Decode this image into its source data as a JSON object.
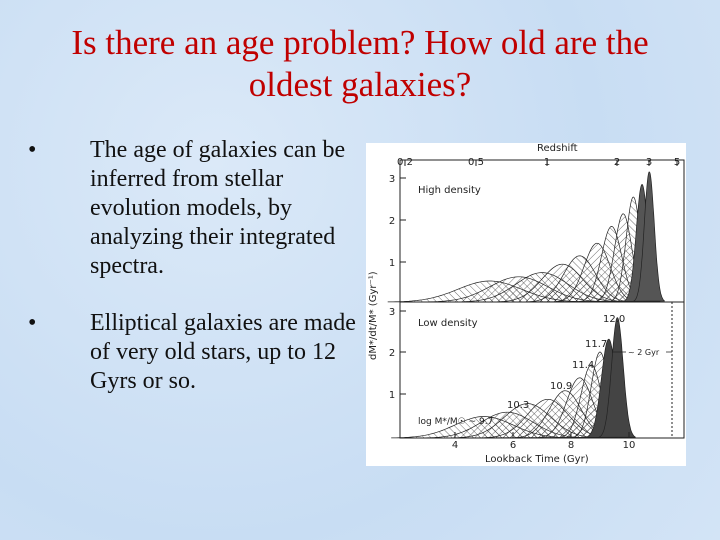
{
  "title": "Is there an age problem? How old are the oldest galaxies?",
  "bullets": [
    "The age of galaxies can be inferred from stellar evolution models, by analyzing their integrated spectra.",
    "Elliptical galaxies are made of very old stars, up to 12 Gyrs or so."
  ],
  "figure": {
    "top_axis_label": "Redshift",
    "top_ticks": [
      "0.2",
      "0.5",
      "1",
      "2",
      "3",
      "5"
    ],
    "y_label": "dM*/dt/M* (Gyr⁻¹)",
    "panels": [
      {
        "label": "High density",
        "y_ticks": [
          "1",
          "2",
          "3"
        ]
      },
      {
        "label": "Low density",
        "y_ticks": [
          "1",
          "2",
          "3"
        ],
        "peak_labels": [
          "10.3",
          "10.9",
          "11.4",
          "11.7",
          "12.0"
        ],
        "mass_label": "log M*/M☉ ~ 9.7",
        "interval_label": "~ 2 Gyr"
      }
    ],
    "x_label": "Lookback Time (Gyr)",
    "x_ticks": [
      "4",
      "6",
      "8",
      "10"
    ]
  }
}
